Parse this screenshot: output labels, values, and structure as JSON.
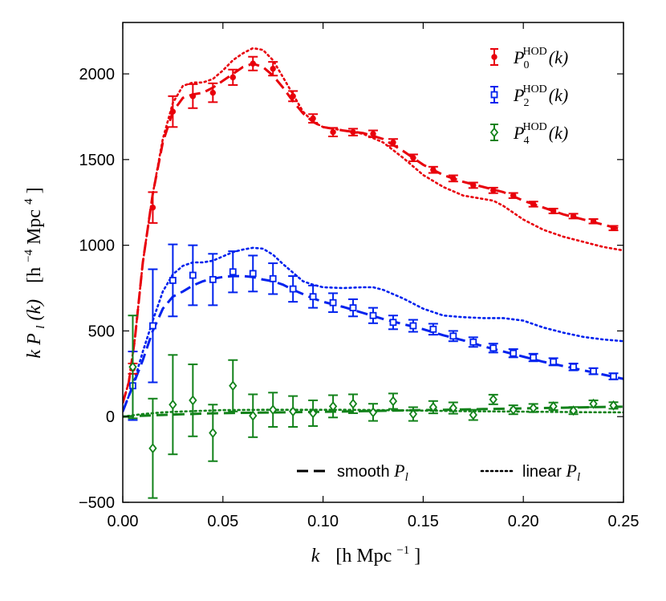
{
  "chart_data": {
    "type": "line",
    "xlabel": "k",
    "xlabel_unit": "[h Mpc",
    "xlabel_unit_exp": "−1",
    "xlabel_unit_close": "]",
    "ylabel": "k P",
    "ylabel_sub": "l",
    "ylabel_arg": "(k)",
    "ylabel_unit": "[h",
    "ylabel_unit_exp": "−4",
    "ylabel_unit_mid": " Mpc",
    "ylabel_unit_exp2": "4",
    "ylabel_unit_close": "]",
    "xlim": [
      0.0,
      0.25
    ],
    "ylim": [
      -500,
      2300
    ],
    "xticks": [
      0.0,
      0.05,
      0.1,
      0.15,
      0.2,
      0.25
    ],
    "xtick_labels": [
      "0.00",
      "0.05",
      "0.10",
      "0.15",
      "0.20",
      "0.25"
    ],
    "yticks": [
      -500,
      0,
      500,
      1000,
      1500,
      2000
    ],
    "ytick_labels": [
      "−500",
      "0",
      "500",
      "1000",
      "1500",
      "2000"
    ],
    "legend_series": [
      {
        "id": "p0",
        "base": "P",
        "sub": "0",
        "sup": "HOD",
        "arg": "(k)",
        "color": "#e8000b"
      },
      {
        "id": "p2",
        "base": "P",
        "sub": "2",
        "sup": "HOD",
        "arg": "(k)",
        "color": "#0022ee"
      },
      {
        "id": "p4",
        "base": "P",
        "sub": "4",
        "sup": "HOD",
        "arg": "(k)",
        "color": "#12821a"
      }
    ],
    "legend_lines": [
      {
        "id": "smooth",
        "label": "smooth",
        "sym": "P",
        "sub": "l"
      },
      {
        "id": "linear",
        "label": "linear",
        "sym": "P",
        "sub": "l"
      }
    ],
    "series": [
      {
        "name": "P0_HOD",
        "color": "#e8000b",
        "marker": "dot",
        "points": [
          {
            "x": 0.005,
            "y": 280,
            "err": 30
          },
          {
            "x": 0.015,
            "y": 1220,
            "err": 90
          },
          {
            "x": 0.025,
            "y": 1780,
            "err": 90
          },
          {
            "x": 0.035,
            "y": 1870,
            "err": 70
          },
          {
            "x": 0.045,
            "y": 1890,
            "err": 55
          },
          {
            "x": 0.055,
            "y": 1980,
            "err": 45
          },
          {
            "x": 0.065,
            "y": 2060,
            "err": 40
          },
          {
            "x": 0.075,
            "y": 2030,
            "err": 40
          },
          {
            "x": 0.085,
            "y": 1870,
            "err": 30
          },
          {
            "x": 0.095,
            "y": 1740,
            "err": 25
          },
          {
            "x": 0.105,
            "y": 1660,
            "err": 25
          },
          {
            "x": 0.115,
            "y": 1660,
            "err": 20
          },
          {
            "x": 0.125,
            "y": 1650,
            "err": 20
          },
          {
            "x": 0.135,
            "y": 1600,
            "err": 20
          },
          {
            "x": 0.145,
            "y": 1510,
            "err": 20
          },
          {
            "x": 0.155,
            "y": 1440,
            "err": 18
          },
          {
            "x": 0.165,
            "y": 1390,
            "err": 18
          },
          {
            "x": 0.175,
            "y": 1350,
            "err": 16
          },
          {
            "x": 0.185,
            "y": 1320,
            "err": 16
          },
          {
            "x": 0.195,
            "y": 1290,
            "err": 15
          },
          {
            "x": 0.205,
            "y": 1240,
            "err": 15
          },
          {
            "x": 0.215,
            "y": 1200,
            "err": 14
          },
          {
            "x": 0.225,
            "y": 1170,
            "err": 14
          },
          {
            "x": 0.235,
            "y": 1140,
            "err": 13
          },
          {
            "x": 0.245,
            "y": 1100,
            "err": 13
          }
        ],
        "smooth": [
          [
            0.0,
            80
          ],
          [
            0.003,
            200
          ],
          [
            0.006,
            450
          ],
          [
            0.01,
            900
          ],
          [
            0.015,
            1300
          ],
          [
            0.02,
            1600
          ],
          [
            0.025,
            1780
          ],
          [
            0.03,
            1860
          ],
          [
            0.035,
            1880
          ],
          [
            0.04,
            1890
          ],
          [
            0.045,
            1920
          ],
          [
            0.05,
            1960
          ],
          [
            0.055,
            2000
          ],
          [
            0.06,
            2040
          ],
          [
            0.065,
            2060
          ],
          [
            0.07,
            2040
          ],
          [
            0.075,
            1990
          ],
          [
            0.08,
            1920
          ],
          [
            0.085,
            1840
          ],
          [
            0.09,
            1770
          ],
          [
            0.095,
            1720
          ],
          [
            0.1,
            1690
          ],
          [
            0.11,
            1670
          ],
          [
            0.12,
            1655
          ],
          [
            0.13,
            1620
          ],
          [
            0.14,
            1550
          ],
          [
            0.15,
            1470
          ],
          [
            0.16,
            1410
          ],
          [
            0.17,
            1370
          ],
          [
            0.18,
            1340
          ],
          [
            0.19,
            1310
          ],
          [
            0.2,
            1260
          ],
          [
            0.21,
            1220
          ],
          [
            0.22,
            1180
          ],
          [
            0.23,
            1150
          ],
          [
            0.24,
            1120
          ],
          [
            0.25,
            1090
          ]
        ],
        "linear": [
          [
            0.0,
            80
          ],
          [
            0.003,
            200
          ],
          [
            0.006,
            450
          ],
          [
            0.01,
            900
          ],
          [
            0.015,
            1300
          ],
          [
            0.02,
            1620
          ],
          [
            0.025,
            1830
          ],
          [
            0.03,
            1930
          ],
          [
            0.035,
            1950
          ],
          [
            0.04,
            1950
          ],
          [
            0.045,
            1970
          ],
          [
            0.05,
            2020
          ],
          [
            0.055,
            2080
          ],
          [
            0.06,
            2120
          ],
          [
            0.065,
            2150
          ],
          [
            0.07,
            2140
          ],
          [
            0.075,
            2080
          ],
          [
            0.08,
            1980
          ],
          [
            0.085,
            1880
          ],
          [
            0.09,
            1780
          ],
          [
            0.095,
            1720
          ],
          [
            0.1,
            1690
          ],
          [
            0.11,
            1670
          ],
          [
            0.12,
            1650
          ],
          [
            0.13,
            1600
          ],
          [
            0.14,
            1510
          ],
          [
            0.15,
            1410
          ],
          [
            0.16,
            1340
          ],
          [
            0.17,
            1290
          ],
          [
            0.18,
            1270
          ],
          [
            0.185,
            1260
          ],
          [
            0.19,
            1230
          ],
          [
            0.2,
            1150
          ],
          [
            0.21,
            1090
          ],
          [
            0.22,
            1050
          ],
          [
            0.23,
            1020
          ],
          [
            0.24,
            990
          ],
          [
            0.25,
            970
          ]
        ]
      },
      {
        "name": "P2_HOD",
        "color": "#0022ee",
        "marker": "square",
        "points": [
          {
            "x": 0.005,
            "y": 180,
            "err": 200
          },
          {
            "x": 0.015,
            "y": 530,
            "err": 330
          },
          {
            "x": 0.025,
            "y": 795,
            "err": 210
          },
          {
            "x": 0.035,
            "y": 825,
            "err": 175
          },
          {
            "x": 0.045,
            "y": 800,
            "err": 150
          },
          {
            "x": 0.055,
            "y": 845,
            "err": 120
          },
          {
            "x": 0.065,
            "y": 835,
            "err": 105
          },
          {
            "x": 0.075,
            "y": 805,
            "err": 90
          },
          {
            "x": 0.085,
            "y": 745,
            "err": 75
          },
          {
            "x": 0.095,
            "y": 700,
            "err": 65
          },
          {
            "x": 0.105,
            "y": 665,
            "err": 55
          },
          {
            "x": 0.115,
            "y": 635,
            "err": 50
          },
          {
            "x": 0.125,
            "y": 590,
            "err": 45
          },
          {
            "x": 0.135,
            "y": 550,
            "err": 40
          },
          {
            "x": 0.145,
            "y": 530,
            "err": 35
          },
          {
            "x": 0.155,
            "y": 510,
            "err": 32
          },
          {
            "x": 0.165,
            "y": 470,
            "err": 30
          },
          {
            "x": 0.175,
            "y": 435,
            "err": 28
          },
          {
            "x": 0.185,
            "y": 400,
            "err": 26
          },
          {
            "x": 0.195,
            "y": 370,
            "err": 24
          },
          {
            "x": 0.205,
            "y": 345,
            "err": 22
          },
          {
            "x": 0.215,
            "y": 320,
            "err": 21
          },
          {
            "x": 0.225,
            "y": 290,
            "err": 20
          },
          {
            "x": 0.235,
            "y": 265,
            "err": 18
          },
          {
            "x": 0.245,
            "y": 235,
            "err": 18
          }
        ],
        "smooth": [
          [
            0.0,
            30
          ],
          [
            0.005,
            180
          ],
          [
            0.01,
            330
          ],
          [
            0.015,
            500
          ],
          [
            0.02,
            630
          ],
          [
            0.025,
            700
          ],
          [
            0.03,
            730
          ],
          [
            0.035,
            765
          ],
          [
            0.04,
            790
          ],
          [
            0.045,
            805
          ],
          [
            0.05,
            815
          ],
          [
            0.055,
            820
          ],
          [
            0.06,
            820
          ],
          [
            0.065,
            815
          ],
          [
            0.07,
            800
          ],
          [
            0.075,
            790
          ],
          [
            0.08,
            770
          ],
          [
            0.085,
            740
          ],
          [
            0.09,
            715
          ],
          [
            0.095,
            690
          ],
          [
            0.1,
            670
          ],
          [
            0.11,
            640
          ],
          [
            0.12,
            605
          ],
          [
            0.13,
            570
          ],
          [
            0.14,
            540
          ],
          [
            0.15,
            510
          ],
          [
            0.16,
            475
          ],
          [
            0.17,
            445
          ],
          [
            0.18,
            410
          ],
          [
            0.19,
            380
          ],
          [
            0.2,
            350
          ],
          [
            0.21,
            320
          ],
          [
            0.22,
            295
          ],
          [
            0.23,
            270
          ],
          [
            0.24,
            245
          ],
          [
            0.25,
            220
          ]
        ],
        "linear": [
          [
            0.0,
            30
          ],
          [
            0.005,
            180
          ],
          [
            0.01,
            380
          ],
          [
            0.015,
            560
          ],
          [
            0.02,
            730
          ],
          [
            0.025,
            830
          ],
          [
            0.03,
            880
          ],
          [
            0.035,
            900
          ],
          [
            0.04,
            900
          ],
          [
            0.045,
            910
          ],
          [
            0.05,
            935
          ],
          [
            0.055,
            960
          ],
          [
            0.06,
            975
          ],
          [
            0.065,
            985
          ],
          [
            0.07,
            980
          ],
          [
            0.075,
            945
          ],
          [
            0.08,
            890
          ],
          [
            0.085,
            840
          ],
          [
            0.09,
            790
          ],
          [
            0.095,
            770
          ],
          [
            0.1,
            755
          ],
          [
            0.11,
            750
          ],
          [
            0.12,
            755
          ],
          [
            0.125,
            755
          ],
          [
            0.13,
            740
          ],
          [
            0.14,
            690
          ],
          [
            0.15,
            630
          ],
          [
            0.16,
            590
          ],
          [
            0.17,
            580
          ],
          [
            0.18,
            575
          ],
          [
            0.19,
            575
          ],
          [
            0.2,
            560
          ],
          [
            0.21,
            520
          ],
          [
            0.22,
            490
          ],
          [
            0.23,
            465
          ],
          [
            0.24,
            450
          ],
          [
            0.25,
            440
          ]
        ]
      },
      {
        "name": "P4_HOD",
        "color": "#12821a",
        "marker": "diamond",
        "points": [
          {
            "x": 0.005,
            "y": 290,
            "err": 300
          },
          {
            "x": 0.015,
            "y": -185,
            "err": 290
          },
          {
            "x": 0.025,
            "y": 70,
            "err": 290
          },
          {
            "x": 0.035,
            "y": 95,
            "err": 210
          },
          {
            "x": 0.045,
            "y": -95,
            "err": 165
          },
          {
            "x": 0.055,
            "y": 180,
            "err": 150
          },
          {
            "x": 0.065,
            "y": 5,
            "err": 125
          },
          {
            "x": 0.075,
            "y": 40,
            "err": 100
          },
          {
            "x": 0.085,
            "y": 30,
            "err": 90
          },
          {
            "x": 0.095,
            "y": 20,
            "err": 75
          },
          {
            "x": 0.105,
            "y": 60,
            "err": 65
          },
          {
            "x": 0.115,
            "y": 75,
            "err": 55
          },
          {
            "x": 0.125,
            "y": 25,
            "err": 50
          },
          {
            "x": 0.135,
            "y": 90,
            "err": 45
          },
          {
            "x": 0.145,
            "y": 15,
            "err": 40
          },
          {
            "x": 0.155,
            "y": 55,
            "err": 36
          },
          {
            "x": 0.165,
            "y": 50,
            "err": 33
          },
          {
            "x": 0.175,
            "y": 10,
            "err": 30
          },
          {
            "x": 0.185,
            "y": 100,
            "err": 28
          },
          {
            "x": 0.195,
            "y": 40,
            "err": 26
          },
          {
            "x": 0.205,
            "y": 50,
            "err": 24
          },
          {
            "x": 0.215,
            "y": 60,
            "err": 22
          },
          {
            "x": 0.225,
            "y": 35,
            "err": 21
          },
          {
            "x": 0.235,
            "y": 75,
            "err": 20
          },
          {
            "x": 0.245,
            "y": 65,
            "err": 19
          }
        ],
        "smooth": [
          [
            0.0,
            0
          ],
          [
            0.01,
            5
          ],
          [
            0.02,
            10
          ],
          [
            0.04,
            18
          ],
          [
            0.06,
            22
          ],
          [
            0.08,
            25
          ],
          [
            0.1,
            28
          ],
          [
            0.12,
            32
          ],
          [
            0.14,
            36
          ],
          [
            0.16,
            40
          ],
          [
            0.18,
            44
          ],
          [
            0.2,
            48
          ],
          [
            0.22,
            52
          ],
          [
            0.25,
            58
          ]
        ],
        "linear": [
          [
            0.0,
            0
          ],
          [
            0.01,
            15
          ],
          [
            0.02,
            25
          ],
          [
            0.03,
            30
          ],
          [
            0.05,
            38
          ],
          [
            0.07,
            40
          ],
          [
            0.09,
            40
          ],
          [
            0.11,
            40
          ],
          [
            0.13,
            38
          ],
          [
            0.15,
            35
          ],
          [
            0.17,
            32
          ],
          [
            0.19,
            30
          ],
          [
            0.21,
            28
          ],
          [
            0.23,
            26
          ],
          [
            0.25,
            25
          ]
        ]
      }
    ]
  }
}
